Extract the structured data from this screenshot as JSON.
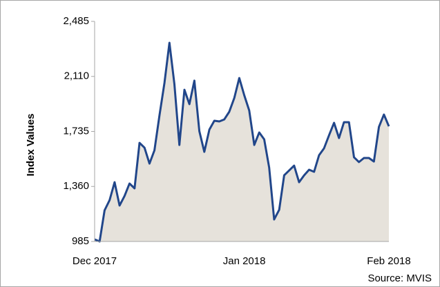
{
  "chart_data": {
    "type": "line",
    "y_label": "Index Values",
    "source": "Source: MVIS",
    "categories": [
      "Dec 2017",
      null,
      null,
      null,
      null,
      null,
      null,
      null,
      null,
      null,
      null,
      null,
      null,
      null,
      null,
      null,
      null,
      null,
      null,
      null,
      null,
      null,
      null,
      null,
      null,
      null,
      null,
      null,
      null,
      null,
      "Jan 2018",
      null,
      null,
      null,
      null,
      null,
      null,
      null,
      null,
      null,
      null,
      null,
      null,
      null,
      null,
      null,
      null,
      null,
      null,
      null,
      null,
      null,
      null,
      null,
      null,
      null,
      null,
      null,
      null,
      "Feb 2018"
    ],
    "series": [
      {
        "name": "Index",
        "color": "#21468a",
        "fill": "#e6e2db",
        "values": [
          999,
          985,
          1197,
          1267,
          1389,
          1230,
          1295,
          1380,
          1347,
          1657,
          1624,
          1516,
          1606,
          1845,
          2066,
          2339,
          2057,
          1643,
          2019,
          1921,
          2081,
          1737,
          1596,
          1747,
          1808,
          1803,
          1817,
          1869,
          1963,
          2099,
          1982,
          1878,
          1643,
          1728,
          1681,
          1488,
          1135,
          1201,
          1436,
          1469,
          1502,
          1389,
          1436,
          1474,
          1460,
          1573,
          1620,
          1709,
          1794,
          1690,
          1798,
          1798,
          1559,
          1526,
          1554,
          1554,
          1530,
          1766,
          1850,
          1770
        ]
      }
    ],
    "ylim": [
      985,
      2485
    ],
    "yticks": [
      {
        "value": 985,
        "label": "985"
      },
      {
        "value": 1360,
        "label": "1,360"
      },
      {
        "value": 1735,
        "label": "1,735"
      },
      {
        "value": 2110,
        "label": "2,110"
      },
      {
        "value": 2485,
        "label": "2,485"
      }
    ],
    "grid": false
  }
}
